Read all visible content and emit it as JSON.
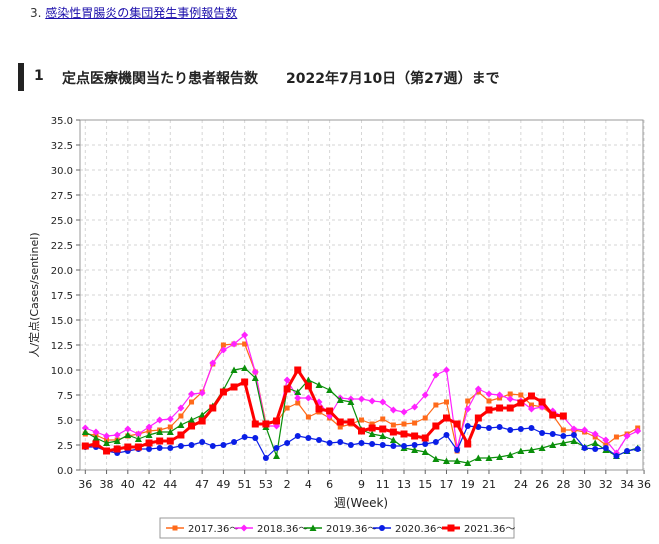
{
  "nav": {
    "item_number": "3.",
    "link_text": "感染性胃腸炎の集団発生事例報告数"
  },
  "section": {
    "number": "1",
    "title": "定点医療機関当たり患者報告数　　2022年7月10日（第27週）まで"
  },
  "chart_data": {
    "type": "line",
    "xlabel": "週(Week)",
    "ylabel": "人/定点(Cases/sentinel)",
    "ylim": [
      0,
      35
    ],
    "y_ticks": [
      "0.0",
      "2.5",
      "5.0",
      "7.5",
      "10.0",
      "12.5",
      "15.0",
      "17.5",
      "20.0",
      "22.5",
      "25.0",
      "27.5",
      "30.0",
      "32.5",
      "35.0"
    ],
    "x_ticks": [
      "36",
      "38",
      "40",
      "42",
      "44",
      "47",
      "49",
      "51",
      "53",
      "2",
      "4",
      "6",
      "9",
      "11",
      "13",
      "15",
      "17",
      "19",
      "21",
      "24",
      "26",
      "28",
      "30",
      "32",
      "34",
      "36"
    ],
    "grid": true,
    "legend_position": "bottom",
    "series": [
      {
        "name": "2017.36～",
        "color": "#ff6a1a",
        "marker": "square-small",
        "values": [
          3.6,
          3.5,
          3.0,
          3.0,
          3.4,
          3.6,
          3.9,
          4.0,
          4.3,
          5.4,
          6.8,
          7.8,
          10.6,
          12.5,
          12.6,
          12.6,
          9.8,
          4.7,
          4.8,
          6.2,
          6.7,
          5.3,
          5.8,
          5.2,
          4.3,
          4.6,
          5.0,
          4.6,
          5.1,
          4.5,
          4.6,
          4.7,
          5.2,
          6.5,
          6.8,
          1.9,
          6.9,
          7.8,
          6.9,
          7.2,
          7.6,
          7.5,
          6.5,
          6.3,
          5.5,
          4.0,
          4.0,
          3.8,
          3.3,
          2.5,
          3.3,
          3.6,
          4.2
        ]
      },
      {
        "name": "2018.36～",
        "color": "#ff22ff",
        "marker": "diamond",
        "values": [
          4.2,
          3.8,
          3.4,
          3.5,
          4.1,
          3.6,
          4.3,
          5.0,
          5.1,
          6.2,
          7.6,
          7.7,
          10.7,
          12.0,
          12.6,
          13.5,
          9.8,
          4.4,
          4.4,
          9.0,
          7.2,
          7.2,
          6.8,
          5.4,
          7.2,
          7.1,
          7.1,
          6.9,
          6.8,
          6.0,
          5.8,
          6.3,
          7.5,
          9.5,
          10.0,
          2.2,
          6.1,
          8.1,
          7.6,
          7.5,
          7.1,
          6.9,
          6.1,
          6.3,
          5.9,
          5.3,
          4.1,
          4.0,
          3.6,
          3.0,
          1.7,
          3.4,
          3.9
        ]
      },
      {
        "name": "2019.36～",
        "color": "#0a8f0a",
        "marker": "triangle",
        "values": [
          3.8,
          3.2,
          2.7,
          2.9,
          3.5,
          3.1,
          3.5,
          3.8,
          3.8,
          4.5,
          5.0,
          5.5,
          6.4,
          8.0,
          10.0,
          10.2,
          9.2,
          4.3,
          1.4,
          8.2,
          7.8,
          9.0,
          8.5,
          8.0,
          7.0,
          6.8,
          4.0,
          3.6,
          3.4,
          3.0,
          2.2,
          2.0,
          1.8,
          1.1,
          0.9,
          0.9,
          0.7,
          1.2,
          1.2,
          1.3,
          1.5,
          1.9,
          2.0,
          2.2,
          2.5,
          2.7,
          2.9,
          2.3,
          2.7,
          2.0,
          1.4,
          1.9,
          2.2
        ]
      },
      {
        "name": "2020.36～",
        "color": "#0a1ee6",
        "marker": "circle",
        "values": [
          2.3,
          2.3,
          1.9,
          1.7,
          1.9,
          2.1,
          2.1,
          2.2,
          2.2,
          2.4,
          2.5,
          2.8,
          2.4,
          2.5,
          2.8,
          3.3,
          3.2,
          1.2,
          2.2,
          2.7,
          3.4,
          3.2,
          3.0,
          2.7,
          2.8,
          2.5,
          2.7,
          2.6,
          2.5,
          2.4,
          2.4,
          2.5,
          2.6,
          2.8,
          3.5,
          2.0,
          4.4,
          4.3,
          4.2,
          4.3,
          4.0,
          4.1,
          4.2,
          3.7,
          3.6,
          3.4,
          3.5,
          2.2,
          2.1,
          2.2,
          1.4,
          1.9,
          2.1
        ]
      },
      {
        "name": "2021.36～",
        "color": "#ff0000",
        "marker": "square",
        "values": [
          2.4,
          2.6,
          1.9,
          2.1,
          2.3,
          2.3,
          2.7,
          2.9,
          2.9,
          3.5,
          4.4,
          4.9,
          6.2,
          7.8,
          8.3,
          8.8,
          4.6,
          4.6,
          4.9,
          8.1,
          10.0,
          8.4,
          6.1,
          5.9,
          4.8,
          4.8,
          3.9,
          4.2,
          4.1,
          3.8,
          3.6,
          3.4,
          3.2,
          4.4,
          5.2,
          4.6,
          2.6,
          5.2,
          6.0,
          6.2,
          6.2,
          6.7,
          7.4,
          6.8,
          5.5,
          5.4
        ]
      }
    ]
  }
}
